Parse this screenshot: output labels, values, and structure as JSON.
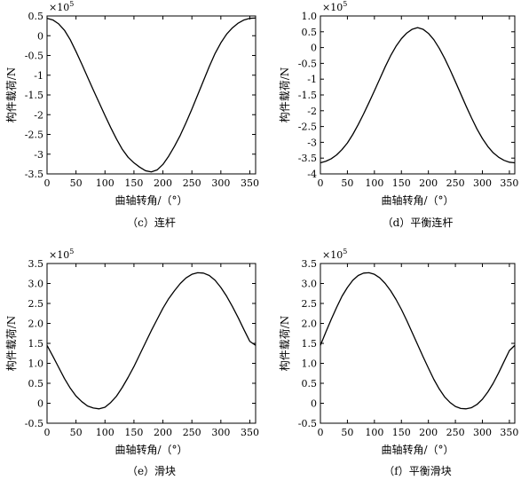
{
  "chart_data": [
    {
      "type": "line",
      "caption": "（c）连杆",
      "xlabel": "曲轴转角/（°）",
      "ylabel": "构件载荷/N",
      "multiplier": "×10",
      "multiplier_exp": "5",
      "xlim": [
        0,
        360
      ],
      "ylim": [
        -3.5,
        0.5
      ],
      "xticks": [
        0,
        50,
        100,
        150,
        200,
        250,
        300,
        350
      ],
      "yticks": [
        -3.5,
        -3,
        -2.5,
        -2,
        -1.5,
        -1,
        -0.5,
        0,
        0.5
      ],
      "ytick_labels": [
        "-3.5",
        "-3",
        "-2.5",
        "-2",
        "-1.5",
        "-1",
        "-0.5",
        "0",
        "0.5"
      ],
      "x": [
        0,
        10,
        20,
        30,
        40,
        50,
        60,
        70,
        80,
        90,
        100,
        110,
        120,
        130,
        140,
        150,
        160,
        170,
        180,
        190,
        200,
        210,
        220,
        230,
        240,
        250,
        260,
        270,
        280,
        290,
        300,
        310,
        320,
        330,
        340,
        350,
        360
      ],
      "y": [
        0.44,
        0.4,
        0.3,
        0.14,
        -0.1,
        -0.4,
        -0.72,
        -1.05,
        -1.38,
        -1.7,
        -2.02,
        -2.33,
        -2.62,
        -2.88,
        -3.08,
        -3.22,
        -3.33,
        -3.42,
        -3.45,
        -3.4,
        -3.26,
        -3.05,
        -2.8,
        -2.52,
        -2.2,
        -1.86,
        -1.5,
        -1.14,
        -0.78,
        -0.45,
        -0.18,
        0.04,
        0.2,
        0.32,
        0.4,
        0.44,
        0.45
      ]
    },
    {
      "type": "line",
      "caption": "（d）平衡连杆",
      "xlabel": "曲轴转角/（°）",
      "ylabel": "构件载荷/N",
      "multiplier": "×10",
      "multiplier_exp": "5",
      "xlim": [
        0,
        360
      ],
      "ylim": [
        -4,
        1
      ],
      "xticks": [
        0,
        50,
        100,
        150,
        200,
        250,
        300,
        350
      ],
      "yticks": [
        -4,
        -3.5,
        -3,
        -2.5,
        -2,
        -1.5,
        -1,
        -0.5,
        0,
        0.5,
        1
      ],
      "ytick_labels": [
        "-4",
        "-3.5",
        "-3",
        "-2.5",
        "-2",
        "-1.5",
        "-1",
        "-0.5",
        "0",
        "0.5",
        "1.0"
      ],
      "x": [
        0,
        10,
        20,
        30,
        40,
        50,
        60,
        70,
        80,
        90,
        100,
        110,
        120,
        130,
        140,
        150,
        160,
        170,
        180,
        190,
        200,
        210,
        220,
        230,
        240,
        250,
        260,
        270,
        280,
        290,
        300,
        310,
        320,
        330,
        340,
        350,
        360
      ],
      "y": [
        -3.65,
        -3.6,
        -3.52,
        -3.4,
        -3.23,
        -3.02,
        -2.75,
        -2.44,
        -2.1,
        -1.74,
        -1.37,
        -0.99,
        -0.61,
        -0.26,
        0.04,
        0.28,
        0.46,
        0.58,
        0.63,
        0.58,
        0.45,
        0.25,
        -0.02,
        -0.34,
        -0.7,
        -1.08,
        -1.47,
        -1.86,
        -2.23,
        -2.58,
        -2.88,
        -3.13,
        -3.33,
        -3.47,
        -3.57,
        -3.63,
        -3.65
      ]
    },
    {
      "type": "line",
      "caption": "（e）滑块",
      "xlabel": "曲轴转角/（°）",
      "ylabel": "构件载荷/N",
      "multiplier": "×10",
      "multiplier_exp": "5",
      "xlim": [
        0,
        360
      ],
      "ylim": [
        -0.5,
        3.5
      ],
      "xticks": [
        0,
        50,
        100,
        150,
        200,
        250,
        300,
        350
      ],
      "yticks": [
        -0.5,
        0,
        0.5,
        1,
        1.5,
        2,
        2.5,
        3,
        3.5
      ],
      "ytick_labels": [
        "-0.5",
        "0",
        "0.5",
        "1.0",
        "1.5",
        "2.0",
        "2.5",
        "3.0",
        "3.5"
      ],
      "x": [
        0,
        10,
        20,
        30,
        40,
        50,
        60,
        70,
        80,
        90,
        100,
        110,
        120,
        130,
        140,
        150,
        160,
        170,
        180,
        190,
        200,
        210,
        220,
        230,
        240,
        250,
        260,
        270,
        280,
        290,
        300,
        310,
        320,
        330,
        340,
        350,
        360
      ],
      "y": [
        1.45,
        1.18,
        0.9,
        0.62,
        0.38,
        0.18,
        0.04,
        -0.07,
        -0.12,
        -0.14,
        -0.1,
        0.02,
        0.18,
        0.4,
        0.65,
        0.92,
        1.22,
        1.52,
        1.82,
        2.1,
        2.38,
        2.62,
        2.82,
        3.0,
        3.14,
        3.23,
        3.27,
        3.26,
        3.2,
        3.08,
        2.9,
        2.68,
        2.42,
        2.14,
        1.84,
        1.55,
        1.45
      ]
    },
    {
      "type": "line",
      "caption": "（f）平衡滑块",
      "xlabel": "曲轴转角/（°）",
      "ylabel": "构件载荷/N",
      "multiplier": "×10",
      "multiplier_exp": "5",
      "xlim": [
        0,
        360
      ],
      "ylim": [
        -0.5,
        3.5
      ],
      "xticks": [
        0,
        50,
        100,
        150,
        200,
        250,
        300,
        350
      ],
      "yticks": [
        -0.5,
        0,
        0.5,
        1,
        1.5,
        2,
        2.5,
        3,
        3.5
      ],
      "ytick_labels": [
        "-0.5",
        "0",
        "0.5",
        "1.0",
        "1.5",
        "2.0",
        "2.5",
        "3.0",
        "3.5"
      ],
      "x": [
        0,
        10,
        20,
        30,
        40,
        50,
        60,
        70,
        80,
        90,
        100,
        110,
        120,
        130,
        140,
        150,
        160,
        170,
        180,
        190,
        200,
        210,
        220,
        230,
        240,
        250,
        260,
        270,
        280,
        290,
        300,
        310,
        320,
        330,
        340,
        350,
        360
      ],
      "y": [
        1.45,
        1.78,
        2.1,
        2.4,
        2.68,
        2.9,
        3.08,
        3.2,
        3.26,
        3.27,
        3.23,
        3.14,
        3.0,
        2.82,
        2.6,
        2.35,
        2.07,
        1.77,
        1.47,
        1.17,
        0.88,
        0.6,
        0.36,
        0.16,
        0.02,
        -0.08,
        -0.13,
        -0.14,
        -0.11,
        -0.03,
        0.1,
        0.28,
        0.5,
        0.76,
        1.04,
        1.32,
        1.45
      ]
    }
  ]
}
